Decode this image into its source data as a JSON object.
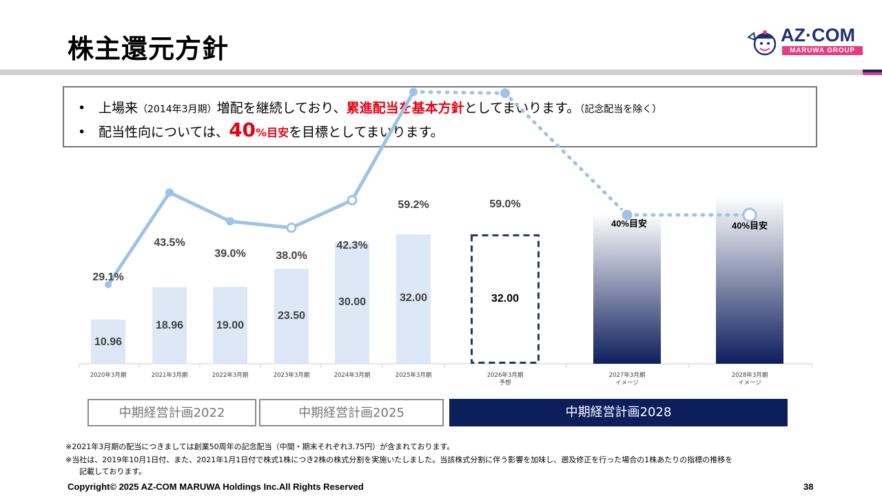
{
  "page": {
    "title": "株主還元方針",
    "page_number": "38",
    "copyright": "Copyright© 2025 AZ-COM MARUWA Holdings Inc.All Rights Reserved"
  },
  "logo": {
    "name": "AZ·COM",
    "sub": "MARUWA GROUP"
  },
  "policy": {
    "line1_a": "上場来",
    "line1_b": "（2014年3月期）",
    "line1_c": "増配を継続しており、",
    "line1_red": "累進配当を基本方針",
    "line1_d": "としてまいります。",
    "line1_e": "（記念配当を除く）",
    "line2_a": "配当性向については、",
    "line2_red_big": "40",
    "line2_red_small": "%目安",
    "line2_b": "を目標としてまいります。"
  },
  "chart_data": {
    "type": "bar+line",
    "categories": [
      "2020年3月期",
      "2021年3月期",
      "2022年3月期",
      "2023年3月期",
      "2024年3月期",
      "2025年3月期",
      "2026年3月期",
      "2027年3月期",
      "2028年3月期"
    ],
    "category_sublabels": [
      "",
      "",
      "",
      "",
      "",
      "",
      "予想",
      "イメージ",
      "イメージ"
    ],
    "dividend_values": [
      10.96,
      18.96,
      19.0,
      23.5,
      30.0,
      32.0,
      32.0,
      null,
      null
    ],
    "dividend_labels": [
      "10.96",
      "18.96",
      "19.00",
      "23.50",
      "30.00",
      "32.00",
      "32.00",
      "",
      ""
    ],
    "payout_ratio": [
      29.1,
      43.5,
      39.0,
      38.0,
      42.3,
      59.2,
      59.0,
      40,
      40
    ],
    "payout_labels": [
      "29.1%",
      "43.5%",
      "39.0%",
      "38.0%",
      "42.3%",
      "59.2%",
      "59.0%",
      "40%目安",
      "40%目安"
    ],
    "bar_style": [
      "actual",
      "actual",
      "actual",
      "actual",
      "actual",
      "actual",
      "forecast",
      "image",
      "image"
    ],
    "colors": {
      "bar": "#dce8f5",
      "line": "#9dc3e6",
      "forecast_border": "#1f3864",
      "navy": "#0d1e5c"
    }
  },
  "plans": [
    {
      "label": "中期経営計画2022",
      "style": "outline"
    },
    {
      "label": "中期経営計画2025",
      "style": "outline"
    },
    {
      "label": "中期経営計画2028",
      "style": "filled"
    }
  ],
  "footnotes": {
    "note1": "※2021年3月期の配当につきましては創業50周年の記念配当（中間・期末それぞれ3.75円）が含まれております。",
    "note2a": "※当社は、2019年10月1日付、また、2021年1月1日付で株式1株につき2株の株式分割を実施いたしました。当該株式分割に伴う影響を加味し、遡及修正を行った場合の1株あたりの指標の推移を",
    "note2b": "記載しております。"
  }
}
